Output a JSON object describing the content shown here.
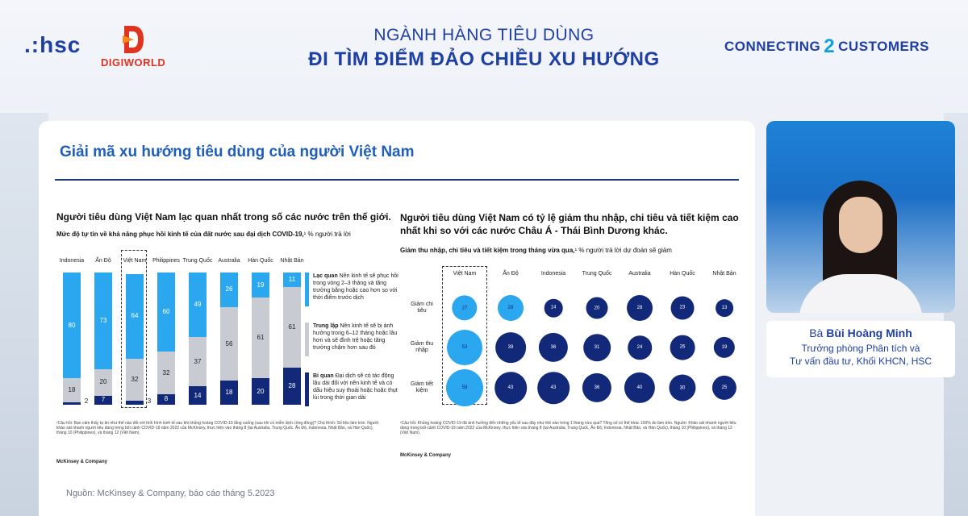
{
  "header": {
    "logo_hsc": ".:hsc",
    "logo_digiworld": "DIGIWORLD",
    "title_line1": "NGÀNH HÀNG TIÊU DÙNG",
    "title_line2": "ĐI TÌM ĐIỂM ĐẢO CHIỀU XU HƯỚNG",
    "tagline_left": "CONNECTING",
    "tagline_glyph": "2",
    "tagline_right": "CUSTOMERS"
  },
  "slide": {
    "title": "Giải mã xu hướng tiêu dùng của người Việt Nam",
    "source": "Nguồn: McKinsey & Company, báo cáo tháng 5.2023",
    "left": {
      "heading": "Người tiêu dùng Việt Nam lạc quan nhất trong số các nước trên thế giới.",
      "sub_bold": "Mức độ tự tin về khả năng phục hồi kinh tế của đất nước sau đại dịch COVID-19,",
      "sub_rest": "¹ % người trả lời",
      "footnote": "¹Câu hỏi: Bạn cảm thấy tự tin như thế nào đối với tình hình kinh tế sau khi khủng hoảng COVID-19 lắng xuống (sau khi có miễn dịch cộng đồng)? Chú thích: Số liệu làm tròn. Người khảo sát nhanh người tiêu dùng trong bối cảnh COVID-19 năm 2022 của McKinsey, thực hiện vào tháng 8 (tại Australia, Trung Quốc, Ấn Độ, Indonesia, Nhật Bản, và Hàn Quốc), tháng 10 (Philippines), và tháng 12 (Việt Nam).",
      "brand": "McKinsey & Company",
      "legend": [
        {
          "title": "Lạc quan",
          "text": " Nền kinh tế sẽ phục hồi trong vòng 2–3 tháng và tăng trưởng bằng hoặc cao hơn so với thời điểm trước dịch",
          "color": "#2aa7ef"
        },
        {
          "title": "Trung lập",
          "text": " Nền kinh tế sẽ bị ảnh hưởng trong 6–12 tháng hoặc lâu hơn và sẽ đình trệ hoặc tăng trưởng chậm hơn sau đó",
          "color": "#c8cbd1"
        },
        {
          "title": "Bi quan",
          "text": " Đại dịch sẽ có tác động lâu dài đối với nền kinh tế và có dấu hiệu suy thoái hoặc hoặc thụt lùi trong thời gian dài",
          "color": "#12297a"
        }
      ]
    },
    "right": {
      "heading": "Người tiêu dùng Việt Nam có tỷ lệ giảm thu nhập, chi tiêu và tiết kiệm cao nhất khi so với các nước Châu Á - Thái Bình Dương khác.",
      "sub_bold": "Giảm thu nhập, chi tiêu và tiết kiệm trong tháng vừa qua,",
      "sub_rest": "¹ % người trả lời dự đoán sẽ giảm",
      "footnote": "¹Câu hỏi: Khủng hoảng COVID-19 đã ảnh hưởng đến những yếu tố sau đây như thế nào trong 1 tháng vừa qua? Tổng số có thể khác 100% do làm tròn. Nguồn: Khảo sát nhanh người tiêu dùng trong bối cảnh COVID-19 năm 2022 của McKinsey, thực hiện vào tháng 8 (tại Australia, Trung Quốc, Ấn Độ, Indonesia, Nhật Bản, và Hàn Quốc), tháng 10 (Philippines), và tháng 12 (Việt Nam).",
      "brand": "McKinsey & Company"
    }
  },
  "speaker": {
    "name_prefix": "Bà ",
    "name": "Bùi Hoàng Minh",
    "role_line1": "Trưởng phòng Phân tích và",
    "role_line2": "Tư vấn đầu tư, Khối KHCN, HSC"
  },
  "chart_data": [
    {
      "type": "bar",
      "stacked": true,
      "categories": [
        "Indonesia",
        "Ấn Độ",
        "Việt Nam",
        "Philippines",
        "Trung Quốc",
        "Australia",
        "Hàn Quốc",
        "Nhật Bản"
      ],
      "series": [
        {
          "name": "Bi quan",
          "values": [
            2,
            7,
            3,
            8,
            14,
            18,
            20,
            28
          ],
          "color": "#12297a"
        },
        {
          "name": "Trung lập",
          "values": [
            18,
            20,
            32,
            32,
            37,
            56,
            61,
            61
          ],
          "color": "#c8cbd1"
        },
        {
          "name": "Lạc quan",
          "values": [
            80,
            73,
            64,
            60,
            49,
            26,
            19,
            11
          ],
          "color": "#2aa7ef"
        }
      ],
      "ylim": [
        0,
        100
      ]
    },
    {
      "type": "scatter",
      "encoding": "bubble",
      "categories": [
        "Việt Nam",
        "Ấn Độ",
        "Indonesia",
        "Trung Quốc",
        "Australia",
        "Hàn Quốc",
        "Nhật Bản"
      ],
      "rows": [
        "Giảm chi tiêu",
        "Giảm thu nhập",
        "Giảm tiết kiệm"
      ],
      "values": [
        [
          27,
          28,
          14,
          20,
          28,
          23,
          13
        ],
        [
          53,
          39,
          36,
          31,
          24,
          26,
          19
        ],
        [
          58,
          43,
          43,
          36,
          40,
          30,
          25
        ]
      ],
      "highlight_color": "#2aa7ef",
      "base_color": "#12297a"
    }
  ]
}
